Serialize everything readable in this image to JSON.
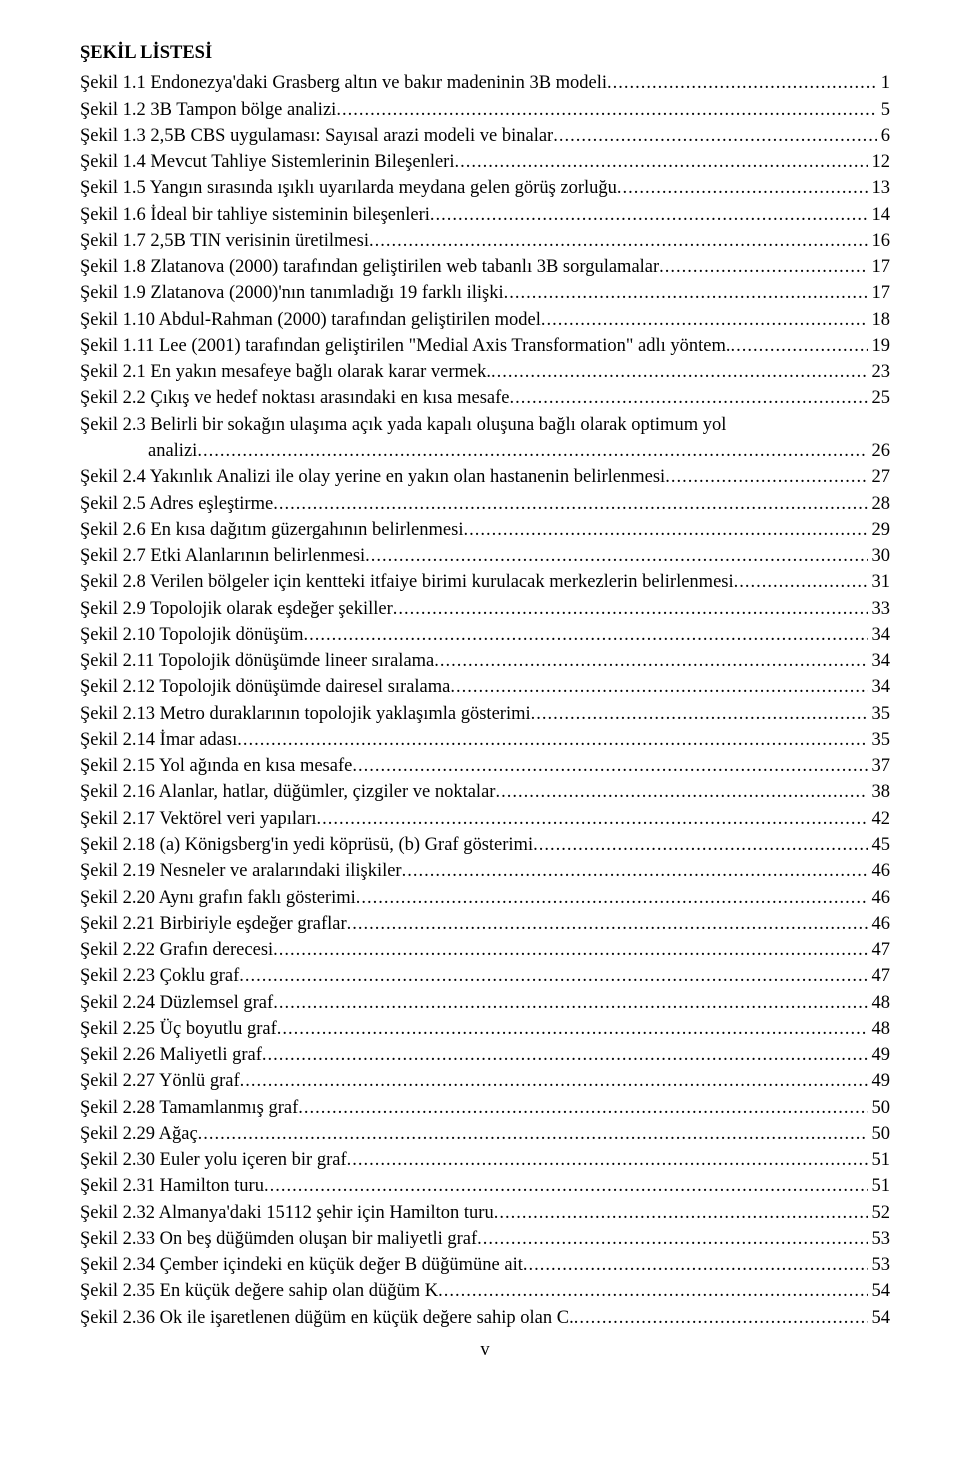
{
  "title": "ŞEKİL LİSTESİ",
  "entries": [
    {
      "text": "Şekil 1.1 Endonezya'daki Grasberg altın ve bakır madeninin 3B modeli",
      "page": "1"
    },
    {
      "text": "Şekil 1.2 3B Tampon bölge analizi",
      "page": "5"
    },
    {
      "text": "Şekil 1.3 2,5B CBS uygulaması: Sayısal arazi modeli ve binalar",
      "page": "6"
    },
    {
      "text": "Şekil 1.4 Mevcut Tahliye Sistemlerinin Bileşenleri",
      "page": "12"
    },
    {
      "text": "Şekil 1.5 Yangın sırasında ışıklı uyarılarda meydana gelen görüş zorluğu",
      "page": "13"
    },
    {
      "text": "Şekil 1.6 İdeal bir tahliye sisteminin bileşenleri",
      "page": "14"
    },
    {
      "text": "Şekil 1.7 2,5B TIN verisinin üretilmesi",
      "page": "16"
    },
    {
      "text": "Şekil 1.8 Zlatanova (2000) tarafından geliştirilen web tabanlı 3B sorgulamalar",
      "page": "17"
    },
    {
      "text": "Şekil 1.9 Zlatanova (2000)'nın tanımladığı 19 farklı ilişki",
      "page": "17"
    },
    {
      "text": "Şekil 1.10 Abdul-Rahman (2000) tarafından geliştirilen model",
      "page": "18"
    },
    {
      "text": "Şekil 1.11 Lee (2001) tarafından geliştirilen \"Medial Axis Transformation\" adlı yöntem.",
      "page": "19"
    },
    {
      "text": "Şekil 2.1 En yakın mesafeye bağlı olarak karar vermek.",
      "page": "23"
    },
    {
      "text": "Şekil 2.2 Çıkış ve hedef noktası arasındaki en kısa mesafe",
      "page": "25"
    },
    {
      "text": "Şekil 2.3 Belirli bir sokağın ulaşıma açık yada kapalı oluşuna bağlı olarak optimum yol",
      "cont": "analizi",
      "page": "26"
    },
    {
      "text": "Şekil 2.4 Yakınlık Analizi ile olay yerine en yakın olan hastanenin belirlenmesi",
      "page": "27"
    },
    {
      "text": "Şekil 2.5 Adres eşleştirme",
      "page": "28"
    },
    {
      "text": "Şekil 2.6 En kısa dağıtım güzergahının belirlenmesi",
      "page": "29"
    },
    {
      "text": "Şekil 2.7 Etki Alanlarının belirlenmesi",
      "page": "30"
    },
    {
      "text": "Şekil 2.8 Verilen bölgeler için kentteki itfaiye birimi kurulacak merkezlerin belirlenmesi",
      "page": "31"
    },
    {
      "text": "Şekil 2.9 Topolojik olarak eşdeğer şekiller",
      "page": "33"
    },
    {
      "text": "Şekil 2.10 Topolojik dönüşüm",
      "page": "34"
    },
    {
      "text": "Şekil 2.11 Topolojik dönüşümde lineer sıralama",
      "page": "34"
    },
    {
      "text": "Şekil 2.12 Topolojik dönüşümde dairesel sıralama",
      "page": "34"
    },
    {
      "text": "Şekil 2.13 Metro duraklarının topolojik yaklaşımla gösterimi",
      "page": "35"
    },
    {
      "text": "Şekil 2.14 İmar adası",
      "page": "35"
    },
    {
      "text": "Şekil 2.15 Yol ağında en kısa mesafe",
      "page": "37"
    },
    {
      "text": "Şekil 2.16 Alanlar, hatlar, düğümler, çizgiler ve noktalar",
      "page": "38"
    },
    {
      "text": "Şekil 2.17 Vektörel veri yapıları",
      "page": "42"
    },
    {
      "text": "Şekil 2.18 (a) Königsberg'in yedi köprüsü, (b) Graf gösterimi",
      "page": "45"
    },
    {
      "text": "Şekil 2.19 Nesneler ve aralarındaki ilişkiler",
      "page": "46"
    },
    {
      "text": "Şekil 2.20 Aynı grafın faklı gösterimi",
      "page": "46"
    },
    {
      "text": "Şekil 2.21 Birbiriyle eşdeğer graflar",
      "page": "46"
    },
    {
      "text": "Şekil 2.22 Grafın derecesi",
      "page": "47"
    },
    {
      "text": "Şekil 2.23 Çoklu graf",
      "page": "47"
    },
    {
      "text": "Şekil 2.24 Düzlemsel graf",
      "page": "48"
    },
    {
      "text": "Şekil 2.25 Üç boyutlu graf",
      "page": "48"
    },
    {
      "text": "Şekil 2.26 Maliyetli graf",
      "page": "49"
    },
    {
      "text": "Şekil 2.27 Yönlü graf",
      "page": "49"
    },
    {
      "text": "Şekil 2.28 Tamamlanmış graf",
      "page": "50"
    },
    {
      "text": "Şekil 2.29 Ağaç",
      "page": "50"
    },
    {
      "text": "Şekil 2.30 Euler yolu içeren bir graf",
      "page": "51"
    },
    {
      "text": "Şekil 2.31 Hamilton turu",
      "page": "51"
    },
    {
      "text": "Şekil 2.32 Almanya'daki 15112  şehir için Hamilton turu",
      "page": "52"
    },
    {
      "text": "Şekil 2.33 On beş düğümden oluşan bir maliyetli graf",
      "page": "53"
    },
    {
      "text": "Şekil 2.34 Çember içindeki en küçük değer B düğümüne ait",
      "page": "53"
    },
    {
      "text": "Şekil 2.35 En küçük değere sahip olan düğüm K",
      "page": "54"
    },
    {
      "text": "Şekil 2.36 Ok ile işaretlenen düğüm en küçük değere sahip olan C.",
      "page": "54"
    }
  ],
  "footer": "v"
}
